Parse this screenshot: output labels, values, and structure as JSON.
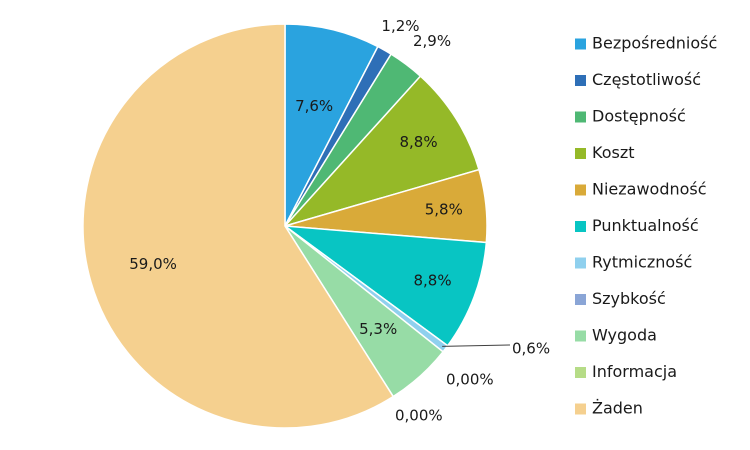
{
  "chart_data": {
    "type": "pie",
    "title": "",
    "legend_position": "right",
    "slices": [
      {
        "label": "Bezpośredniość",
        "value": 7.6,
        "display": "7,6%",
        "color": "#2aa3df"
      },
      {
        "label": "Częstotliwość",
        "value": 1.2,
        "display": "1,2%",
        "color": "#2e6fb7"
      },
      {
        "label": "Dostępność",
        "value": 2.9,
        "display": "2,9%",
        "color": "#4fb874"
      },
      {
        "label": "Koszt",
        "value": 8.8,
        "display": "8,8%",
        "color": "#95b928"
      },
      {
        "label": "Niezawodność",
        "value": 5.8,
        "display": "5,8%",
        "color": "#d9aa39"
      },
      {
        "label": "Punktualność",
        "value": 8.8,
        "display": "8,8%",
        "color": "#08c5c3"
      },
      {
        "label": "Rytmiczność",
        "value": 0.6,
        "display": "0,6%",
        "color": "#8fd0ee"
      },
      {
        "label": "Szybkość",
        "value": 0.0,
        "display": "0,00%",
        "color": "#8aa5d6"
      },
      {
        "label": "Wygoda",
        "value": 5.3,
        "display": "5,3%",
        "color": "#97dca6"
      },
      {
        "label": "Informacja",
        "value": 0.0,
        "display": "0,00%",
        "color": "#b6dc87"
      },
      {
        "label": "Żaden",
        "value": 59.0,
        "display": "59,0%",
        "color": "#f5d08f"
      }
    ]
  }
}
